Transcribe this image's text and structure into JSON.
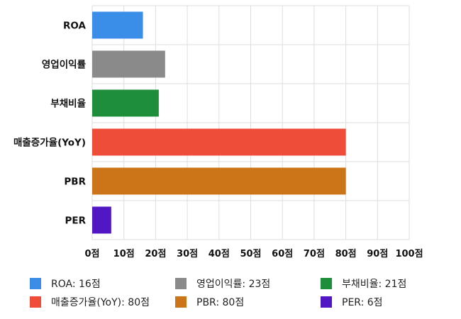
{
  "chart_data": {
    "type": "bar",
    "orientation": "horizontal",
    "title": "",
    "categories": [
      "ROA",
      "영업이익률",
      "부채비율",
      "매출증가율(YoY)",
      "PBR",
      "PER"
    ],
    "values": [
      16,
      23,
      21,
      80,
      80,
      6
    ],
    "colors": [
      "#3b8ee8",
      "#8a8a8a",
      "#1e8e3a",
      "#ee4d3a",
      "#cc7418",
      "#5217c4"
    ],
    "xlim": [
      0,
      100
    ],
    "x_ticks": [
      "0점",
      "10점",
      "20점",
      "30점",
      "40점",
      "50점",
      "60점",
      "70점",
      "80점",
      "90점",
      "100점"
    ],
    "grid": true,
    "legend_position": "bottom",
    "legend": [
      {
        "label": "ROA: 16점",
        "color": "#3b8ee8"
      },
      {
        "label": "영업이익률: 23점",
        "color": "#8a8a8a"
      },
      {
        "label": "부채비율: 21점",
        "color": "#1e8e3a"
      },
      {
        "label": "매출증가율(YoY): 80점",
        "color": "#ee4d3a"
      },
      {
        "label": "PBR: 80점",
        "color": "#cc7418"
      },
      {
        "label": "PER: 6점",
        "color": "#5217c4"
      }
    ]
  }
}
